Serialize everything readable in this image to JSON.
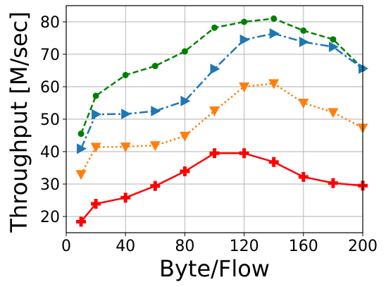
{
  "chart_data": {
    "type": "line",
    "xlabel": "Byte/Flow",
    "ylabel": "Throughput [M/sec]",
    "xlim": [
      0,
      200
    ],
    "ylim": [
      15,
      85
    ],
    "xticks": [
      0,
      40,
      80,
      120,
      160,
      200
    ],
    "yticks": [
      20,
      30,
      40,
      50,
      60,
      70,
      80
    ],
    "xtick_labels": [
      "0",
      "40",
      "80",
      "120",
      "160",
      "200"
    ],
    "ytick_labels": [
      "20",
      "30",
      "40",
      "50",
      "60",
      "70",
      "80"
    ],
    "grid": true,
    "x": [
      10,
      20,
      40,
      60,
      80,
      100,
      120,
      140,
      160,
      180,
      200
    ],
    "series": [
      {
        "color": "#008000",
        "marker": "circle",
        "line_style": "dashed",
        "values": [
          45.5,
          57.2,
          63.6,
          66.4,
          70.9,
          78.2,
          80.0,
          81.0,
          77.3,
          74.6,
          65.6
        ]
      },
      {
        "color": "#1f77b4",
        "marker": "triangle-right",
        "line_style": "dash-dot",
        "values": [
          40.9,
          51.5,
          51.6,
          52.5,
          55.6,
          65.5,
          74.5,
          76.4,
          73.8,
          72.3,
          65.6
        ]
      },
      {
        "color": "#ff7f0e",
        "marker": "triangle-down",
        "line_style": "dotted",
        "values": [
          33.0,
          41.4,
          41.5,
          41.9,
          44.8,
          52.6,
          60.0,
          61.0,
          55.0,
          52.1,
          47.3
        ]
      },
      {
        "color": "#ff0000",
        "marker": "plus",
        "line_style": "solid",
        "values": [
          18.4,
          23.9,
          25.8,
          29.4,
          33.9,
          39.5,
          39.5,
          36.8,
          32.2,
          30.3,
          29.5
        ]
      }
    ]
  }
}
